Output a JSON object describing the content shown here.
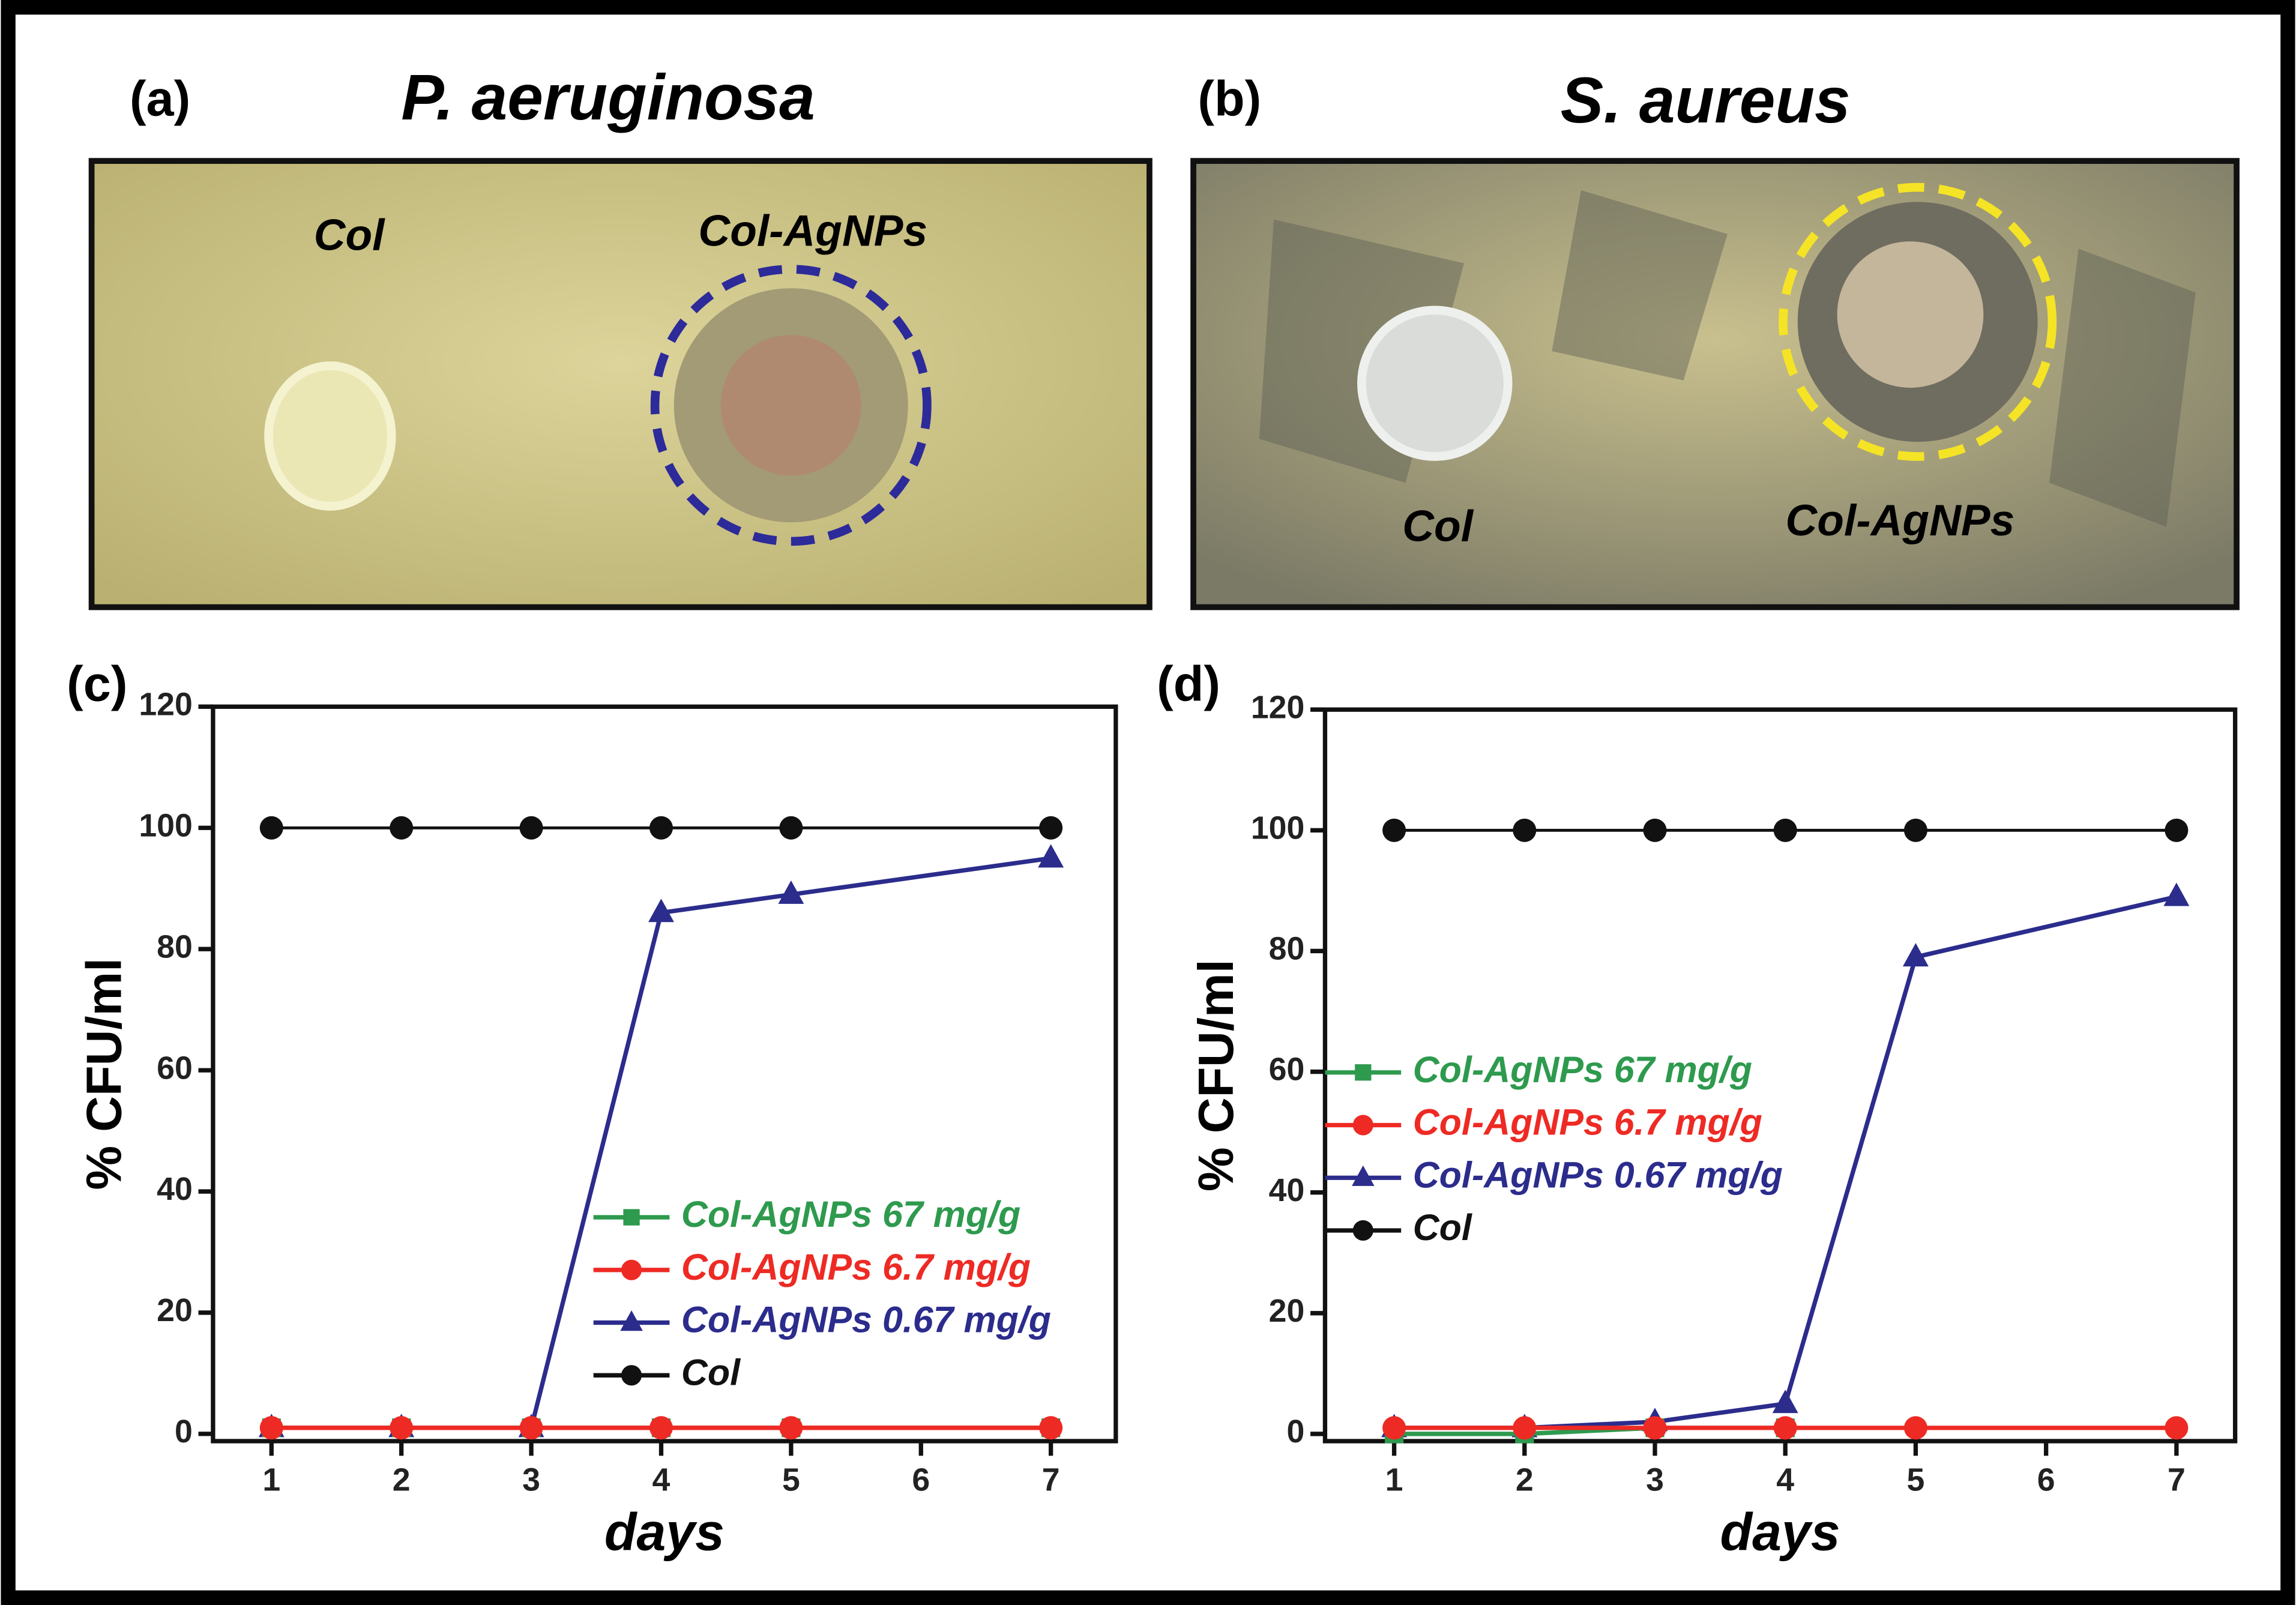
{
  "panels": [
    {
      "label": "(a)",
      "title": "P. aeruginosa",
      "annotations": [
        "Col",
        "Col-AgNPs"
      ]
    },
    {
      "label": "(b)",
      "title": "S. aureus",
      "annotations": [
        "Col",
        "Col-AgNPs"
      ]
    }
  ],
  "chart_data": [
    {
      "type": "line",
      "panel_label": "(c)",
      "x_label": "days",
      "y_label": "% CFU/ml",
      "x": [
        1,
        2,
        3,
        4,
        5,
        7
      ],
      "xlim": [
        0.55,
        7.5
      ],
      "xticks": [
        1,
        2,
        3,
        4,
        5,
        6,
        7
      ],
      "ylim": [
        -1.2,
        120
      ],
      "yticks": [
        0,
        20,
        40,
        60,
        80,
        100,
        120
      ],
      "legend": "lower right",
      "series": [
        {
          "name": "Col-AgNPs 67 mg/g",
          "color": "#2e9a4e",
          "marker": "square",
          "values": [
            1,
            1,
            1,
            1,
            1,
            1
          ]
        },
        {
          "name": "Col-AgNPs 6.7 mg/g",
          "color": "#ee2a24",
          "marker": "circle",
          "values": [
            1,
            1,
            1,
            1,
            1,
            1
          ]
        },
        {
          "name": "Col-AgNPs 0.67 mg/g",
          "color": "#2b2c8c",
          "marker": "triangle",
          "values": [
            1,
            1,
            1,
            86,
            89,
            95
          ]
        },
        {
          "name": "Col",
          "color": "#111111",
          "marker": "circle",
          "values": [
            100,
            100,
            100,
            100,
            100,
            100
          ]
        }
      ]
    },
    {
      "type": "line",
      "panel_label": "(d)",
      "x_label": "days",
      "y_label": "% CFU/ml",
      "x": [
        1,
        2,
        3,
        4,
        5,
        7
      ],
      "xlim": [
        0.47,
        7.45
      ],
      "xticks": [
        1,
        2,
        3,
        4,
        5,
        6,
        7
      ],
      "ylim": [
        -1.2,
        120
      ],
      "yticks": [
        0,
        20,
        40,
        60,
        80,
        100,
        120
      ],
      "legend": "center left",
      "series": [
        {
          "name": "Col-AgNPs 67 mg/g",
          "color": "#2e9a4e",
          "marker": "square",
          "values": [
            0,
            0,
            1,
            1,
            null,
            null
          ]
        },
        {
          "name": "Col-AgNPs 6.7 mg/g",
          "color": "#ee2a24",
          "marker": "circle",
          "values": [
            1,
            1,
            1,
            1,
            1,
            1
          ]
        },
        {
          "name": "Col-AgNPs 0.67 mg/g",
          "color": "#2b2c8c",
          "marker": "triangle",
          "values": [
            1,
            1,
            2,
            5,
            79,
            89
          ]
        },
        {
          "name": "Col",
          "color": "#111111",
          "marker": "circle",
          "values": [
            100,
            100,
            100,
            100,
            100,
            100
          ]
        }
      ]
    }
  ]
}
